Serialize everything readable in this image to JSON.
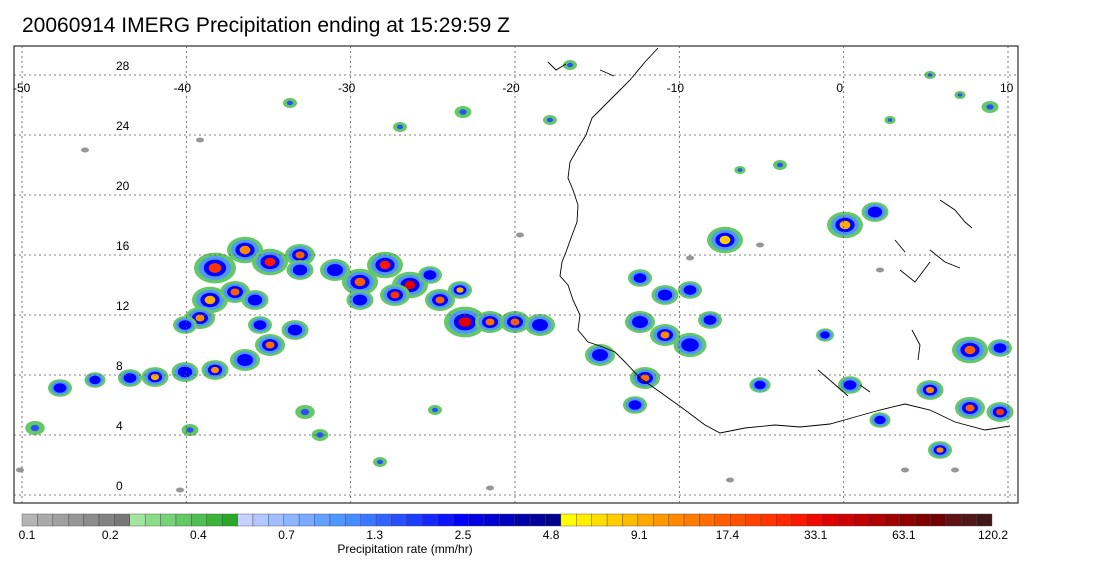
{
  "title": "20060914 IMERG Precipitation ending at 15:29:59 Z",
  "map": {
    "lon_range": [
      -50,
      10
    ],
    "lat_range": [
      -1,
      30
    ],
    "lon_ticks": [
      "-50",
      "-40",
      "-30",
      "-20",
      "-10",
      "0",
      "10"
    ],
    "lat_ticks": [
      "28",
      "24",
      "20",
      "16",
      "12",
      "8",
      "4",
      "0"
    ],
    "gridlines": true
  },
  "colorbar": {
    "title": "Precipitation rate (mm/hr)",
    "labels": [
      "0.1",
      "0.2",
      "0.4",
      "0.7",
      "1.3",
      "2.5",
      "4.8",
      "9.1",
      "17.4",
      "33.1",
      "63.1",
      "120.2"
    ],
    "colors": [
      "#b4b4b4",
      "#aaaaaa",
      "#a0a0a0",
      "#969696",
      "#8c8c8c",
      "#828282",
      "#787878",
      "#a0e6a0",
      "#8cdc8c",
      "#78d278",
      "#64c864",
      "#50be50",
      "#3cb43c",
      "#28aa28",
      "#c8d2ff",
      "#b4c8ff",
      "#a0beff",
      "#8cb4ff",
      "#78aaff",
      "#64a0ff",
      "#5096ff",
      "#468cff",
      "#3c78ff",
      "#3264ff",
      "#2850ff",
      "#1e3cff",
      "#1428ff",
      "#0a14ff",
      "#0000ff",
      "#0000e6",
      "#0000d2",
      "#0000be",
      "#0000aa",
      "#00009b",
      "#00008c",
      "#ffff00",
      "#ffee00",
      "#ffdd00",
      "#ffcc00",
      "#ffbb00",
      "#ffaa00",
      "#ff9900",
      "#ff8800",
      "#ff7a00",
      "#ff6c00",
      "#ff5e00",
      "#ff5000",
      "#ff4200",
      "#ff3400",
      "#ff2600",
      "#ff1800",
      "#f00a00",
      "#e00000",
      "#d00000",
      "#c00000",
      "#b00000",
      "#a00000",
      "#900000",
      "#800000",
      "#700000",
      "#601010",
      "#501818",
      "#401818"
    ]
  }
}
